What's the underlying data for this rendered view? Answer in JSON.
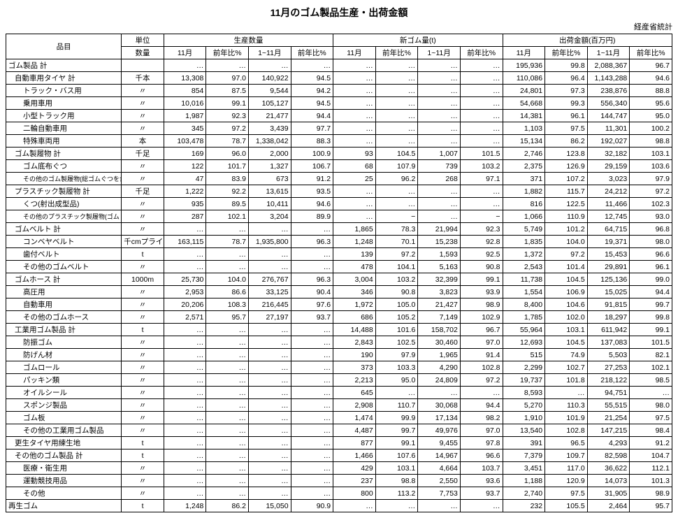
{
  "title": "11月のゴム製品生産・出荷金額",
  "source": "経産省統計",
  "header": {
    "item": "品目",
    "unit_top": "単位",
    "unit_bottom": "数量",
    "group_prod": "生産数量",
    "group_new": "新ゴム量(t)",
    "group_ship": "出荷金額(百万円)",
    "c_nov": "11月",
    "c_yoy": "前年比%",
    "c_1_11": "1~11月",
    "c_yoy2": "前年比%"
  },
  "rows": [
    {
      "name": "ゴム製品 計",
      "indent": 0,
      "unit": "",
      "v": [
        "…",
        "…",
        "…",
        "…",
        "…",
        "…",
        "…",
        "…",
        "195,936",
        "99.8",
        "2,088,367",
        "96.7"
      ]
    },
    {
      "name": "自動車用タイヤ 計",
      "indent": 1,
      "unit": "千本",
      "v": [
        "13,308",
        "97.0",
        "140,922",
        "94.5",
        "…",
        "…",
        "…",
        "…",
        "110,086",
        "96.4",
        "1,143,288",
        "94.6"
      ]
    },
    {
      "name": "トラック・バス用",
      "indent": 2,
      "unit": "〃",
      "v": [
        "854",
        "87.5",
        "9,544",
        "94.2",
        "…",
        "…",
        "…",
        "…",
        "24,801",
        "97.3",
        "238,876",
        "88.8"
      ]
    },
    {
      "name": "乗用車用",
      "indent": 2,
      "unit": "〃",
      "v": [
        "10,016",
        "99.1",
        "105,127",
        "94.5",
        "…",
        "…",
        "…",
        "…",
        "54,668",
        "99.3",
        "556,340",
        "95.6"
      ]
    },
    {
      "name": "小型トラック用",
      "indent": 2,
      "unit": "〃",
      "v": [
        "1,987",
        "92.3",
        "21,477",
        "94.4",
        "…",
        "…",
        "…",
        "…",
        "14,381",
        "96.1",
        "144,747",
        "95.0"
      ]
    },
    {
      "name": "二輪自動車用",
      "indent": 2,
      "unit": "〃",
      "v": [
        "345",
        "97.2",
        "3,439",
        "97.7",
        "…",
        "…",
        "…",
        "…",
        "1,103",
        "97.5",
        "11,301",
        "100.2"
      ]
    },
    {
      "name": "特殊車両用",
      "indent": 2,
      "unit": "本",
      "v": [
        "103,478",
        "78.7",
        "1,338,042",
        "88.3",
        "…",
        "…",
        "…",
        "…",
        "15,134",
        "86.2",
        "192,027",
        "98.8"
      ]
    },
    {
      "name": "ゴム製履物 計",
      "indent": 1,
      "unit": "千足",
      "v": [
        "169",
        "96.0",
        "2,000",
        "100.9",
        "93",
        "104.5",
        "1,007",
        "101.5",
        "2,746",
        "123.8",
        "32,182",
        "103.1"
      ]
    },
    {
      "name": "ゴム底布ぐつ",
      "indent": 2,
      "unit": "〃",
      "v": [
        "122",
        "101.7",
        "1,327",
        "106.7",
        "68",
        "107.9",
        "739",
        "103.2",
        "2,375",
        "126.9",
        "29,159",
        "103.6"
      ]
    },
    {
      "name": "その他のゴム製履物(総ゴムぐつを含む)",
      "indent": 3,
      "unit": "〃",
      "v": [
        "47",
        "83.9",
        "673",
        "91.2",
        "25",
        "96.2",
        "268",
        "97.1",
        "371",
        "107.2",
        "3,023",
        "97.9"
      ]
    },
    {
      "name": "プラスチック製履物 計",
      "indent": 1,
      "unit": "千足",
      "v": [
        "1,222",
        "92.2",
        "13,615",
        "93.5",
        "…",
        "…",
        "…",
        "…",
        "1,882",
        "115.7",
        "24,212",
        "97.2"
      ]
    },
    {
      "name": "くつ(射出成型品)",
      "indent": 2,
      "unit": "〃",
      "v": [
        "935",
        "89.5",
        "10,411",
        "94.6",
        "…",
        "…",
        "…",
        "…",
        "816",
        "122.5",
        "11,466",
        "102.3"
      ]
    },
    {
      "name": "その他のプラスチック製履物(ゴム・プラ)",
      "indent": 3,
      "unit": "〃",
      "v": [
        "287",
        "102.1",
        "3,204",
        "89.9",
        "…",
        "−",
        "…",
        "−",
        "1,066",
        "110.9",
        "12,745",
        "93.0"
      ]
    },
    {
      "name": "ゴムベルト 計",
      "indent": 1,
      "unit": "〃",
      "v": [
        "…",
        "…",
        "…",
        "…",
        "1,865",
        "78.3",
        "21,994",
        "92.3",
        "5,749",
        "101.2",
        "64,715",
        "96.8"
      ]
    },
    {
      "name": "コンベヤベルト",
      "indent": 2,
      "unit": "千cmプライ",
      "v": [
        "163,115",
        "78.7",
        "1,935,800",
        "96.3",
        "1,248",
        "70.1",
        "15,238",
        "92.8",
        "1,835",
        "104.0",
        "19,371",
        "98.0"
      ]
    },
    {
      "name": "歯付ベルト",
      "indent": 2,
      "unit": "t",
      "v": [
        "…",
        "…",
        "…",
        "…",
        "139",
        "97.2",
        "1,593",
        "92.5",
        "1,372",
        "97.2",
        "15,453",
        "96.6"
      ]
    },
    {
      "name": "その他のゴムベルト",
      "indent": 2,
      "unit": "〃",
      "v": [
        "…",
        "…",
        "…",
        "…",
        "478",
        "104.1",
        "5,163",
        "90.8",
        "2,543",
        "101.4",
        "29,891",
        "96.1"
      ]
    },
    {
      "name": "ゴムホース 計",
      "indent": 1,
      "unit": "1000m",
      "v": [
        "25,730",
        "104.0",
        "276,767",
        "96.3",
        "3,004",
        "103.2",
        "32,399",
        "99.1",
        "11,738",
        "104.5",
        "125,136",
        "99.0"
      ]
    },
    {
      "name": "高圧用",
      "indent": 2,
      "unit": "〃",
      "v": [
        "2,953",
        "86.6",
        "33,125",
        "90.4",
        "346",
        "90.8",
        "3,823",
        "93.9",
        "1,554",
        "106.9",
        "15,025",
        "94.4"
      ]
    },
    {
      "name": "自動車用",
      "indent": 2,
      "unit": "〃",
      "v": [
        "20,206",
        "108.3",
        "216,445",
        "97.6",
        "1,972",
        "105.0",
        "21,427",
        "98.9",
        "8,400",
        "104.6",
        "91,815",
        "99.7"
      ]
    },
    {
      "name": "その他のゴムホース",
      "indent": 2,
      "unit": "〃",
      "v": [
        "2,571",
        "95.7",
        "27,197",
        "93.7",
        "686",
        "105.2",
        "7,149",
        "102.9",
        "1,785",
        "102.0",
        "18,297",
        "99.8"
      ]
    },
    {
      "name": "工業用ゴム製品 計",
      "indent": 1,
      "unit": "t",
      "v": [
        "…",
        "…",
        "…",
        "…",
        "14,488",
        "101.6",
        "158,702",
        "96.7",
        "55,964",
        "103.1",
        "611,942",
        "99.1"
      ]
    },
    {
      "name": "防振ゴム",
      "indent": 2,
      "unit": "〃",
      "v": [
        "…",
        "…",
        "…",
        "…",
        "2,843",
        "102.5",
        "30,460",
        "97.0",
        "12,693",
        "104.5",
        "137,083",
        "101.5"
      ]
    },
    {
      "name": "防げん材",
      "indent": 2,
      "unit": "〃",
      "v": [
        "…",
        "…",
        "…",
        "…",
        "190",
        "97.9",
        "1,965",
        "91.4",
        "515",
        "74.9",
        "5,503",
        "82.1"
      ]
    },
    {
      "name": "ゴムロール",
      "indent": 2,
      "unit": "〃",
      "v": [
        "…",
        "…",
        "…",
        "…",
        "373",
        "103.3",
        "4,290",
        "102.8",
        "2,299",
        "102.7",
        "27,253",
        "102.1"
      ]
    },
    {
      "name": "パッキン類",
      "indent": 2,
      "unit": "〃",
      "v": [
        "…",
        "…",
        "…",
        "…",
        "2,213",
        "95.0",
        "24,809",
        "97.2",
        "19,737",
        "101.8",
        "218,122",
        "98.5"
      ]
    },
    {
      "name": "オイルシール",
      "indent": 2,
      "unit": "〃",
      "v": [
        "…",
        "…",
        "…",
        "…",
        "645",
        "…",
        "…",
        "…",
        "8,593",
        "…",
        "94,751",
        "…"
      ]
    },
    {
      "name": "スポンジ製品",
      "indent": 2,
      "unit": "〃",
      "v": [
        "…",
        "…",
        "…",
        "…",
        "2,908",
        "110.7",
        "30,068",
        "94.4",
        "5,270",
        "110.3",
        "55,515",
        "98.0"
      ]
    },
    {
      "name": "ゴム板",
      "indent": 2,
      "unit": "〃",
      "v": [
        "…",
        "…",
        "…",
        "…",
        "1,474",
        "99.9",
        "17,134",
        "98.2",
        "1,910",
        "101.9",
        "21,254",
        "97.5"
      ]
    },
    {
      "name": "その他の工業用ゴム製品",
      "indent": 2,
      "unit": "〃",
      "v": [
        "…",
        "…",
        "…",
        "…",
        "4,487",
        "99.7",
        "49,976",
        "97.0",
        "13,540",
        "102.8",
        "147,215",
        "98.4"
      ]
    },
    {
      "name": "更生タイヤ用練生地",
      "indent": 1,
      "unit": "t",
      "v": [
        "…",
        "…",
        "…",
        "…",
        "877",
        "99.1",
        "9,455",
        "97.8",
        "391",
        "96.5",
        "4,293",
        "91.2"
      ]
    },
    {
      "name": "その他のゴム製品 計",
      "indent": 1,
      "unit": "t",
      "v": [
        "…",
        "…",
        "…",
        "…",
        "1,466",
        "107.6",
        "14,967",
        "96.6",
        "7,379",
        "109.7",
        "82,598",
        "104.7"
      ]
    },
    {
      "name": "医療・衛生用",
      "indent": 2,
      "unit": "〃",
      "v": [
        "…",
        "…",
        "…",
        "…",
        "429",
        "103.1",
        "4,664",
        "103.7",
        "3,451",
        "117.0",
        "36,622",
        "112.1"
      ]
    },
    {
      "name": "運動競技用品",
      "indent": 2,
      "unit": "〃",
      "v": [
        "…",
        "…",
        "…",
        "…",
        "237",
        "98.8",
        "2,550",
        "93.6",
        "1,188",
        "120.9",
        "14,073",
        "101.3"
      ]
    },
    {
      "name": "その他",
      "indent": 2,
      "unit": "〃",
      "v": [
        "…",
        "…",
        "…",
        "…",
        "800",
        "113.2",
        "7,753",
        "93.7",
        "2,740",
        "97.5",
        "31,905",
        "98.9"
      ]
    },
    {
      "name": "再生ゴム",
      "indent": 0,
      "unit": "t",
      "v": [
        "1,248",
        "86.2",
        "15,050",
        "90.9",
        "…",
        "…",
        "…",
        "…",
        "232",
        "105.5",
        "2,464",
        "95.7"
      ]
    }
  ]
}
